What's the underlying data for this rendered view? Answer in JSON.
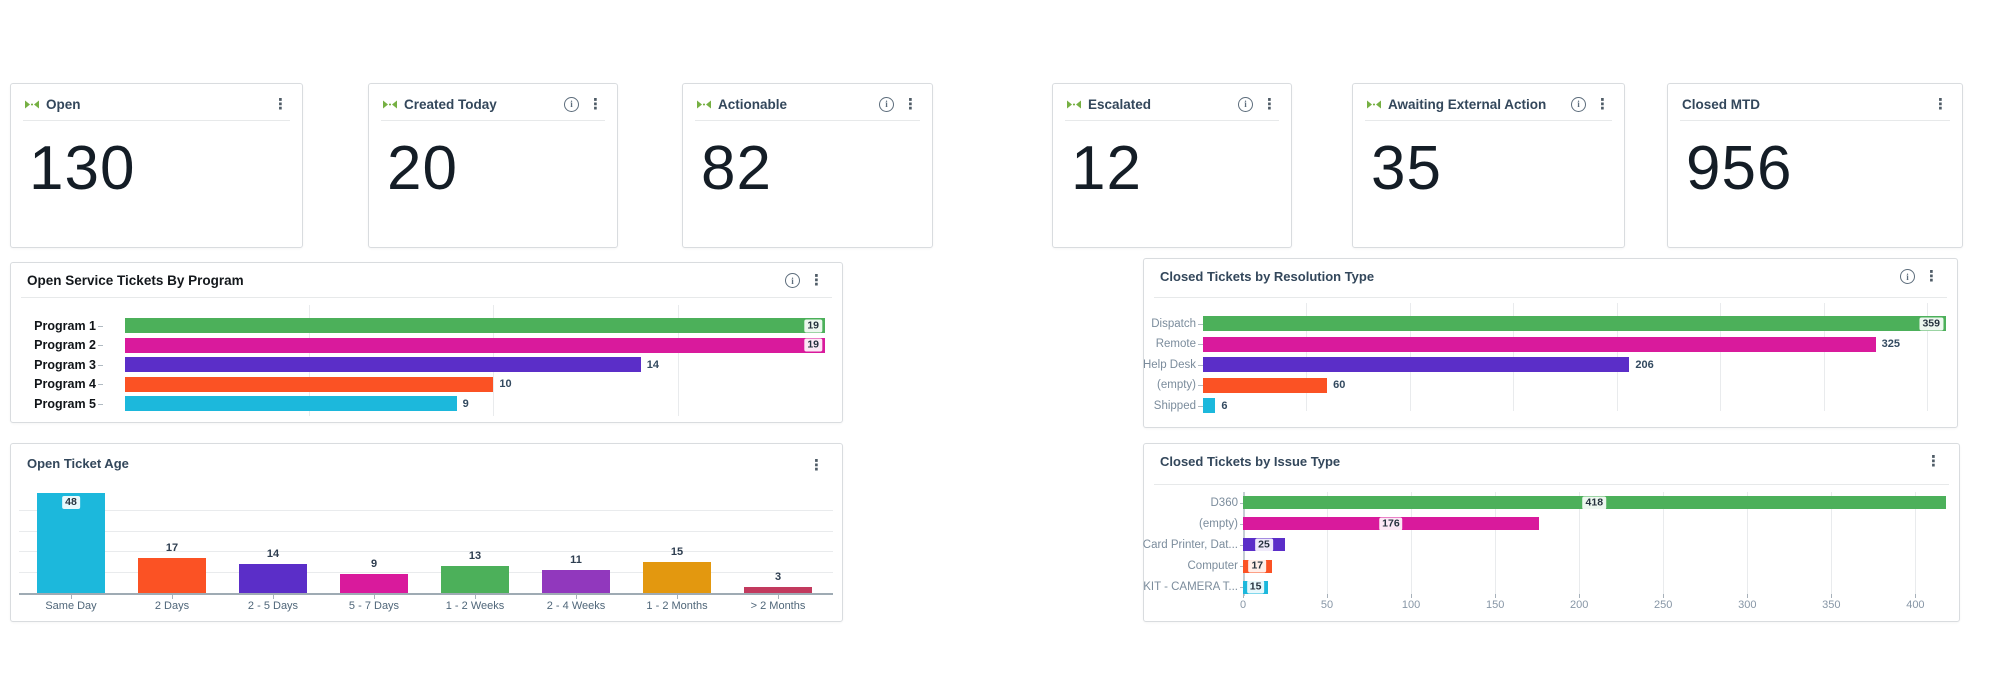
{
  "icons": {
    "kebab": "⋮",
    "info": "i",
    "kpi_marker": "pull-arrows-icon"
  },
  "palette": {
    "green": "#4cb05a",
    "magenta": "#d91a9c",
    "purple": "#5b2ec8",
    "orange": "#fb5224",
    "cyan": "#1cb8dc",
    "violet": "#9138bd",
    "amber": "#e3980f",
    "crimson": "#c23a5e",
    "kpi_icon_green": "#76b043"
  },
  "kpis": [
    {
      "label": "Open",
      "value": "130",
      "has_info": false,
      "has_marker": true
    },
    {
      "label": "Created Today",
      "value": "20",
      "has_info": true,
      "has_marker": true
    },
    {
      "label": "Actionable",
      "value": "82",
      "has_info": true,
      "has_marker": true
    },
    {
      "label": "Escalated",
      "value": "12",
      "has_info": true,
      "has_marker": true
    },
    {
      "label": "Awaiting External Action",
      "value": "35",
      "has_info": true,
      "has_marker": true
    },
    {
      "label": "Closed MTD",
      "value": "956",
      "has_info": false,
      "has_marker": false
    }
  ],
  "chart_data": [
    {
      "id": "open-service-tickets-by-program",
      "type": "bar",
      "orientation": "horizontal",
      "title": "Open Service Tickets By Program",
      "categories": [
        "Program 1",
        "Program 2",
        "Program 3",
        "Program 4",
        "Program 5"
      ],
      "values": [
        19,
        19,
        14,
        10,
        9
      ],
      "colors": [
        "#4cb05a",
        "#d91a9c",
        "#5b2ec8",
        "#fb5224",
        "#1cb8dc"
      ],
      "xmax": 19,
      "gridlines": [
        5,
        10,
        15
      ],
      "grid": true,
      "legend": false,
      "has_info": true,
      "has_menu": true
    },
    {
      "id": "closed-tickets-by-resolution-type",
      "type": "bar",
      "orientation": "horizontal",
      "title": "Closed Tickets by Resolution Type",
      "categories": [
        "Dispatch",
        "Remote",
        "Help Desk",
        "(empty)",
        "Shipped"
      ],
      "values": [
        359,
        325,
        206,
        60,
        6
      ],
      "colors": [
        "#4cb05a",
        "#d91a9c",
        "#5b2ec8",
        "#fb5224",
        "#1cb8dc"
      ],
      "xmax": 359,
      "gridlines": [
        50,
        100,
        150,
        200,
        250,
        300,
        350
      ],
      "grid": true,
      "legend": false,
      "has_info": true,
      "has_menu": true
    },
    {
      "id": "open-ticket-age",
      "type": "bar",
      "orientation": "vertical",
      "title": "Open Ticket Age",
      "categories": [
        "Same Day",
        "2 Days",
        "2 - 5 Days",
        "5 - 7 Days",
        "1 - 2 Weeks",
        "2 - 4 Weeks",
        "1 - 2 Months",
        "> 2 Months"
      ],
      "values": [
        48,
        17,
        14,
        9,
        13,
        11,
        15,
        3
      ],
      "colors": [
        "#1cb8dc",
        "#fb5224",
        "#5b2ec8",
        "#d91a9c",
        "#4cb05a",
        "#9138bd",
        "#e3980f",
        "#c23a5e"
      ],
      "ymax": 50,
      "gridlines": [
        10,
        20,
        30,
        40
      ],
      "grid": true,
      "legend": false,
      "has_info": false,
      "has_menu": true
    },
    {
      "id": "closed-tickets-by-issue-type",
      "type": "bar",
      "orientation": "horizontal",
      "title": "Closed Tickets by Issue Type",
      "categories": [
        "D360",
        "(empty)",
        "Card Printer, Dat...",
        "Computer",
        "KIT - CAMERA T..."
      ],
      "values": [
        418,
        176,
        25,
        17,
        15
      ],
      "colors": [
        "#4cb05a",
        "#d91a9c",
        "#5b2ec8",
        "#fb5224",
        "#1cb8dc"
      ],
      "xmax": 420,
      "gridlines": [
        50,
        100,
        150,
        200,
        250,
        300,
        350,
        400
      ],
      "axis_ticks": [
        0,
        50,
        100,
        150,
        200,
        250,
        300,
        350,
        400
      ],
      "grid": true,
      "legend": false,
      "has_info": false,
      "has_menu": true
    }
  ]
}
